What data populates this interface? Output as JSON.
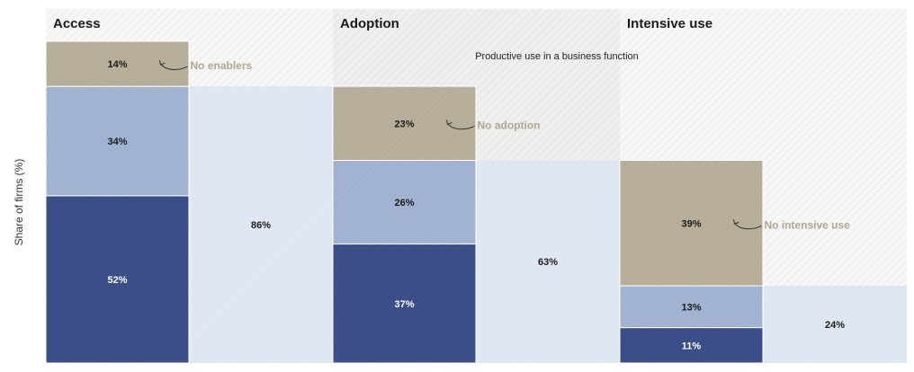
{
  "chart_data": {
    "type": "bar",
    "ylabel": "Share of firms (%)",
    "ylim": [
      0,
      100
    ],
    "stages": [
      {
        "title": "Access",
        "subtitle": "",
        "segments": [
          {
            "value": 52,
            "label": "52%",
            "role": "dark"
          },
          {
            "value": 34,
            "label": "34%",
            "role": "mid"
          },
          {
            "value": 14,
            "label": "14%",
            "role": "none",
            "note": "No enablers"
          }
        ],
        "passing": {
          "value": 86,
          "label": "86%"
        }
      },
      {
        "title": "Adoption",
        "subtitle": "Productive use in a business function",
        "segments": [
          {
            "value": 37,
            "label": "37%",
            "role": "dark"
          },
          {
            "value": 26,
            "label": "26%",
            "role": "mid"
          },
          {
            "value": 23,
            "label": "23%",
            "role": "none",
            "note": "No adoption"
          }
        ],
        "passing": {
          "value": 63,
          "label": "63%"
        }
      },
      {
        "title": "Intensive use",
        "subtitle": "",
        "segments": [
          {
            "value": 11,
            "label": "11%",
            "role": "dark"
          },
          {
            "value": 13,
            "label": "13%",
            "role": "mid"
          },
          {
            "value": 39,
            "label": "39%",
            "role": "none",
            "note": "No intensive use"
          }
        ],
        "passing": {
          "value": 24,
          "label": "24%"
        }
      }
    ],
    "colors": {
      "dark": "#3d4f8a",
      "mid": "#a3b4d3",
      "none": "#b8b09a",
      "passing": "#e2e8f3",
      "annotation": "#b0a78e",
      "background": "#f4f4f4"
    }
  }
}
